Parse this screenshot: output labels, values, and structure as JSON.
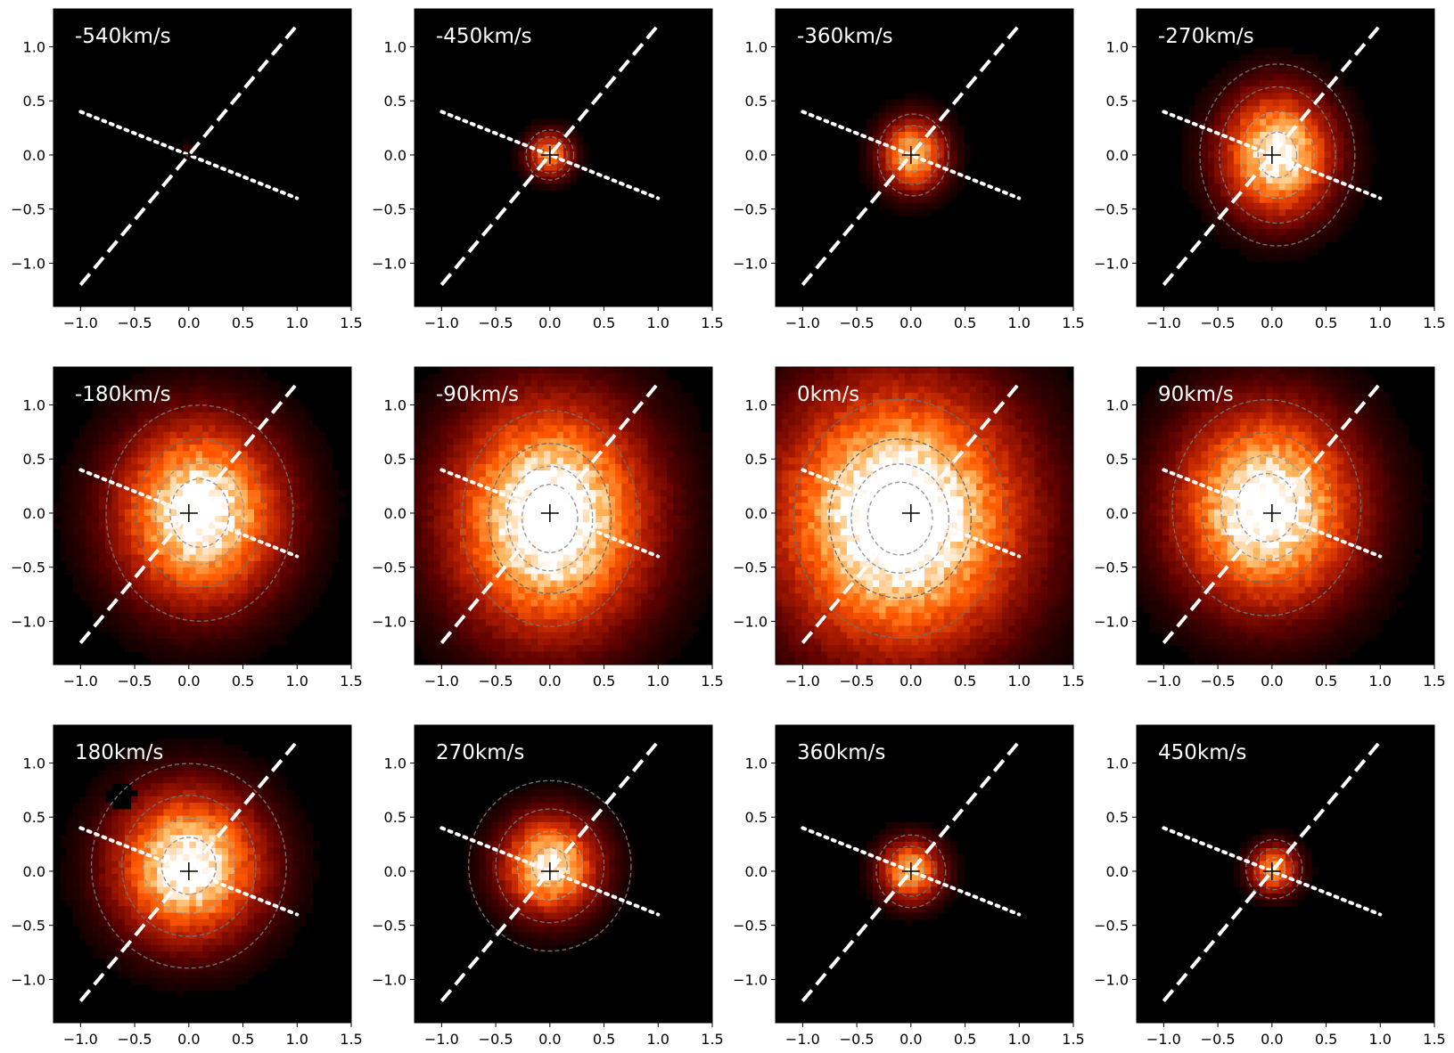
{
  "figure": {
    "background": "#ffffff",
    "colormap": "gist_heat",
    "colormap_stops": [
      "#000000",
      "#5a0000",
      "#b41e00",
      "#ff5a00",
      "#ffb45a",
      "#ffffff"
    ]
  },
  "chart_data": [
    {
      "type": "heatmap",
      "title": "-540km/s",
      "xlim": [
        -1.25,
        1.5
      ],
      "ylim": [
        -1.4,
        1.35
      ],
      "xticks": [
        "−1.0",
        "−0.5",
        "0.0",
        "0.5",
        "1.0",
        "1.5"
      ],
      "yticks": [
        "1.0",
        "0.5",
        "0.0",
        "−0.5",
        "−1.0"
      ],
      "source": {
        "x": 0.0,
        "y": 0.05,
        "peak": 0.12,
        "sx": 0.05,
        "sy": 0.05
      },
      "contours": [],
      "dashed_line": {
        "from": [
          -1.0,
          -1.2
        ],
        "to": [
          1.0,
          1.2
        ]
      },
      "dotted_line": {
        "from": [
          -1.0,
          0.4
        ],
        "to": [
          1.0,
          -0.4
        ]
      },
      "center_marker": [
        0.0,
        0.0
      ]
    },
    {
      "type": "heatmap",
      "title": "-450km/s",
      "xlim": [
        -1.25,
        1.5
      ],
      "ylim": [
        -1.4,
        1.35
      ],
      "xticks": [
        "−1.0",
        "−0.5",
        "0.0",
        "0.5",
        "1.0",
        "1.5"
      ],
      "yticks": [
        "1.0",
        "0.5",
        "0.0",
        "−0.5",
        "−1.0"
      ],
      "source": {
        "x": 0.0,
        "y": 0.0,
        "peak": 0.72,
        "sx": 0.14,
        "sy": 0.14
      },
      "contours": [
        0.09,
        0.16,
        0.22
      ],
      "dashed_line": {
        "from": [
          -1.0,
          -1.2
        ],
        "to": [
          1.0,
          1.2
        ]
      },
      "dotted_line": {
        "from": [
          -1.0,
          0.4
        ],
        "to": [
          1.0,
          -0.4
        ]
      },
      "center_marker": [
        0.0,
        0.0
      ]
    },
    {
      "type": "heatmap",
      "title": "-360km/s",
      "xlim": [
        -1.25,
        1.5
      ],
      "ylim": [
        -1.4,
        1.35
      ],
      "xticks": [
        "−1.0",
        "−0.5",
        "0.0",
        "0.5",
        "1.0",
        "1.5"
      ],
      "yticks": [
        "1.0",
        "0.5",
        "0.0",
        "−0.5",
        "−1.0"
      ],
      "source": {
        "x": 0.02,
        "y": 0.0,
        "peak": 0.88,
        "sx": 0.2,
        "sy": 0.22
      },
      "contours": [
        0.15,
        0.26,
        0.36
      ],
      "dashed_line": {
        "from": [
          -1.0,
          -1.2
        ],
        "to": [
          1.0,
          1.2
        ]
      },
      "dotted_line": {
        "from": [
          -1.0,
          0.4
        ],
        "to": [
          1.0,
          -0.4
        ]
      },
      "center_marker": [
        0.0,
        0.0
      ]
    },
    {
      "type": "heatmap",
      "title": "-270km/s",
      "xlim": [
        -1.25,
        1.5
      ],
      "ylim": [
        -1.4,
        1.35
      ],
      "xticks": [
        "−1.0",
        "−0.5",
        "0.0",
        "0.5",
        "1.0",
        "1.5"
      ],
      "yticks": [
        "1.0",
        "0.5",
        "0.0",
        "−0.5",
        "−1.0"
      ],
      "source": {
        "x": 0.05,
        "y": 0.0,
        "peak": 1.05,
        "sx": 0.34,
        "sy": 0.38
      },
      "contours": [
        0.2,
        0.38,
        0.6,
        0.8
      ],
      "dashed_line": {
        "from": [
          -1.0,
          -1.2
        ],
        "to": [
          1.0,
          1.2
        ]
      },
      "dotted_line": {
        "from": [
          -1.0,
          0.4
        ],
        "to": [
          1.0,
          -0.4
        ]
      },
      "center_marker": [
        0.0,
        0.0
      ]
    },
    {
      "type": "heatmap",
      "title": "-180km/s",
      "xlim": [
        -1.25,
        1.5
      ],
      "ylim": [
        -1.4,
        1.35
      ],
      "xticks": [
        "−1.0",
        "−0.5",
        "0.0",
        "0.5",
        "1.0",
        "1.5"
      ],
      "yticks": [
        "1.0",
        "0.5",
        "0.0",
        "−0.5",
        "−1.0"
      ],
      "source": {
        "x": 0.1,
        "y": 0.0,
        "peak": 1.12,
        "sx": 0.5,
        "sy": 0.55
      },
      "contours": [
        0.3,
        0.45,
        0.65,
        0.95
      ],
      "dashed_line": {
        "from": [
          -1.0,
          -1.2
        ],
        "to": [
          1.0,
          1.2
        ]
      },
      "dotted_line": {
        "from": [
          -1.0,
          0.4
        ],
        "to": [
          1.0,
          -0.4
        ]
      },
      "center_marker": [
        0.0,
        0.0
      ]
    },
    {
      "type": "heatmap",
      "title": "-90km/s",
      "xlim": [
        -1.25,
        1.5
      ],
      "ylim": [
        -1.4,
        1.35
      ],
      "xticks": [
        "−1.0",
        "−0.5",
        "0.0",
        "0.5",
        "1.0",
        "1.5"
      ],
      "yticks": [
        "1.0",
        "0.5",
        "0.0",
        "−0.5",
        "−1.0"
      ],
      "source": {
        "x": 0.0,
        "y": -0.05,
        "peak": 1.2,
        "sx": 0.6,
        "sy": 0.7
      },
      "contours": [
        0.3,
        0.46,
        0.66,
        0.95
      ],
      "dashed_line": {
        "from": [
          -1.0,
          -1.2
        ],
        "to": [
          1.0,
          1.2
        ]
      },
      "dotted_line": {
        "from": [
          -1.0,
          0.4
        ],
        "to": [
          1.0,
          -0.4
        ]
      },
      "center_marker": [
        0.0,
        0.0
      ]
    },
    {
      "type": "heatmap",
      "title": "0km/s",
      "xlim": [
        -1.25,
        1.5
      ],
      "ylim": [
        -1.4,
        1.35
      ],
      "xticks": [
        "−1.0",
        "−0.5",
        "0.0",
        "0.5",
        "1.0",
        "1.5"
      ],
      "yticks": [
        "1.0",
        "0.5",
        "0.0",
        "−0.5",
        "−1.0"
      ],
      "source": {
        "x": -0.1,
        "y": -0.05,
        "peak": 1.25,
        "sx": 0.75,
        "sy": 0.8
      },
      "contours": [
        0.32,
        0.48,
        0.7,
        1.05
      ],
      "dashed_line": {
        "from": [
          -1.0,
          -1.2
        ],
        "to": [
          1.0,
          1.2
        ]
      },
      "dotted_line": {
        "from": [
          -1.0,
          0.4
        ],
        "to": [
          1.0,
          -0.4
        ]
      },
      "center_marker": [
        0.0,
        0.0
      ]
    },
    {
      "type": "heatmap",
      "title": "90km/s",
      "xlim": [
        -1.25,
        1.5
      ],
      "ylim": [
        -1.4,
        1.35
      ],
      "xticks": [
        "−1.0",
        "−0.5",
        "0.0",
        "0.5",
        "1.0",
        "1.5"
      ],
      "yticks": [
        "1.0",
        "0.5",
        "0.0",
        "−0.5",
        "−1.0"
      ],
      "source": {
        "x": -0.05,
        "y": 0.05,
        "peak": 1.15,
        "sx": 0.55,
        "sy": 0.6
      },
      "contours": [
        0.3,
        0.46,
        0.66,
        0.95
      ],
      "dashed_line": {
        "from": [
          -1.0,
          -1.2
        ],
        "to": [
          1.0,
          1.2
        ]
      },
      "dotted_line": {
        "from": [
          -1.0,
          0.4
        ],
        "to": [
          1.0,
          -0.4
        ]
      },
      "center_marker": [
        0.0,
        0.0
      ]
    },
    {
      "type": "heatmap",
      "title": "180km/s",
      "xlim": [
        -1.25,
        1.5
      ],
      "ylim": [
        -1.4,
        1.35
      ],
      "xticks": [
        "−1.0",
        "−0.5",
        "0.0",
        "0.5",
        "1.0",
        "1.5"
      ],
      "yticks": [
        "1.0",
        "0.5",
        "0.0",
        "−0.5",
        "−1.0"
      ],
      "source": {
        "x": 0.0,
        "y": 0.05,
        "peak": 1.1,
        "sx": 0.45,
        "sy": 0.45
      },
      "contours": [
        0.25,
        0.42,
        0.62,
        0.9
      ],
      "dashed_line": {
        "from": [
          -1.0,
          -1.2
        ],
        "to": [
          1.0,
          1.2
        ]
      },
      "dotted_line": {
        "from": [
          -1.0,
          0.4
        ],
        "to": [
          1.0,
          -0.4
        ]
      },
      "center_marker": [
        0.0,
        0.0
      ],
      "masked_region": {
        "x": -0.63,
        "y": 0.7,
        "r": 0.13
      }
    },
    {
      "type": "heatmap",
      "title": "270km/s",
      "xlim": [
        -1.25,
        1.5
      ],
      "ylim": [
        -1.4,
        1.35
      ],
      "xticks": [
        "−1.0",
        "−0.5",
        "0.0",
        "0.5",
        "1.0",
        "1.5"
      ],
      "yticks": [
        "1.0",
        "0.5",
        "0.0",
        "−0.5",
        "−1.0"
      ],
      "source": {
        "x": 0.0,
        "y": 0.05,
        "peak": 1.0,
        "sx": 0.3,
        "sy": 0.3
      },
      "contours": [
        0.16,
        0.3,
        0.5,
        0.75
      ],
      "dashed_line": {
        "from": [
          -1.0,
          -1.2
        ],
        "to": [
          1.0,
          1.2
        ]
      },
      "dotted_line": {
        "from": [
          -1.0,
          0.4
        ],
        "to": [
          1.0,
          -0.4
        ]
      },
      "center_marker": [
        0.0,
        0.0
      ]
    },
    {
      "type": "heatmap",
      "title": "360km/s",
      "xlim": [
        -1.25,
        1.5
      ],
      "ylim": [
        -1.4,
        1.35
      ],
      "xticks": [
        "−1.0",
        "−0.5",
        "0.0",
        "0.5",
        "1.0",
        "1.5"
      ],
      "yticks": [
        "1.0",
        "0.5",
        "0.0",
        "−0.5",
        "−1.0"
      ],
      "source": {
        "x": 0.0,
        "y": 0.0,
        "peak": 0.85,
        "sx": 0.19,
        "sy": 0.19
      },
      "contours": [
        0.12,
        0.22,
        0.32
      ],
      "dashed_line": {
        "from": [
          -1.0,
          -1.2
        ],
        "to": [
          1.0,
          1.2
        ]
      },
      "dotted_line": {
        "from": [
          -1.0,
          0.4
        ],
        "to": [
          1.0,
          -0.4
        ]
      },
      "center_marker": [
        0.0,
        0.0
      ]
    },
    {
      "type": "heatmap",
      "title": "450km/s",
      "xlim": [
        -1.25,
        1.5
      ],
      "ylim": [
        -1.4,
        1.35
      ],
      "xticks": [
        "−1.0",
        "−0.5",
        "0.0",
        "0.5",
        "1.0",
        "1.5"
      ],
      "yticks": [
        "1.0",
        "0.5",
        "0.0",
        "−0.5",
        "−1.0"
      ],
      "source": {
        "x": 0.02,
        "y": 0.02,
        "peak": 0.75,
        "sx": 0.15,
        "sy": 0.15
      },
      "contours": [
        0.1,
        0.18,
        0.26
      ],
      "dashed_line": {
        "from": [
          -1.0,
          -1.2
        ],
        "to": [
          1.0,
          1.2
        ]
      },
      "dotted_line": {
        "from": [
          -1.0,
          0.4
        ],
        "to": [
          1.0,
          -0.4
        ]
      },
      "center_marker": [
        0.0,
        0.0
      ]
    }
  ]
}
